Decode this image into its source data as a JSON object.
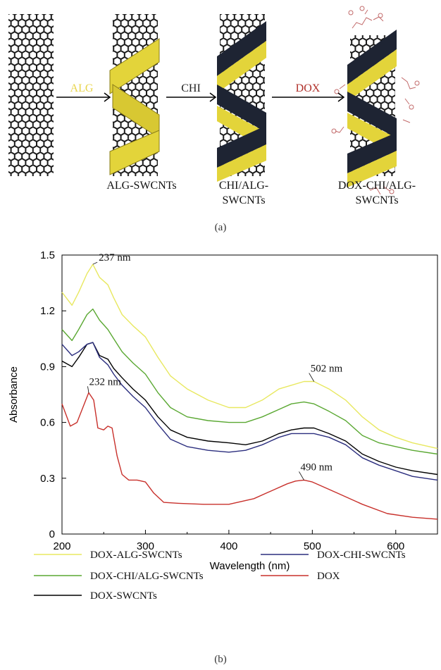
{
  "schematic": {
    "panel_label": "(a)",
    "steps": [
      {
        "reagent": "ALG",
        "reagent_color": "#e8d44a"
      },
      {
        "reagent": "CHI",
        "reagent_color": "#222222"
      },
      {
        "reagent": "DOX",
        "reagent_color": "#b0302a"
      }
    ],
    "products": [
      {
        "line1": "ALG-SWCNTs",
        "line2": ""
      },
      {
        "line1": "CHI/ALG-",
        "line2": "SWCNTs"
      },
      {
        "line1": "DOX-CHI/ALG-",
        "line2": "SWCNTs"
      }
    ],
    "colors": {
      "alg_band": "#e3d43a",
      "chi_band": "#1e2433",
      "tube": "#1a1a1a"
    }
  },
  "chart_data": {
    "type": "line",
    "panel_label": "(b)",
    "xlabel": "Wavelength (nm)",
    "ylabel": "Absorbance",
    "xlim": [
      200,
      650
    ],
    "ylim": [
      0,
      1.5
    ],
    "xticks": [
      200,
      300,
      400,
      500,
      600
    ],
    "xtick_labels": [
      "200",
      "300",
      "400",
      "500",
      "600"
    ],
    "yticks": [
      0,
      0.3,
      0.6,
      0.9,
      1.2,
      1.5
    ],
    "ytick_labels": [
      "0",
      "0.3",
      "0.6",
      "0.9",
      "1.2",
      "1.5"
    ],
    "grid": false,
    "legend_position": "bottom",
    "annotations": [
      {
        "text": "237 nm",
        "x": 237,
        "y": 1.45
      },
      {
        "text": "232 nm",
        "x": 232,
        "y": 0.76
      },
      {
        "text": "502 nm",
        "x": 502,
        "y": 0.82
      },
      {
        "text": "490 nm",
        "x": 490,
        "y": 0.29
      }
    ],
    "series": [
      {
        "name": "DOX-ALG-SWCNTs",
        "color": "#e8e860",
        "x": [
          200,
          212,
          220,
          230,
          237,
          245,
          255,
          262,
          272,
          285,
          300,
          315,
          330,
          350,
          375,
          400,
          420,
          440,
          460,
          475,
          490,
          502,
          520,
          540,
          560,
          580,
          600,
          620,
          650
        ],
        "y": [
          1.3,
          1.23,
          1.3,
          1.4,
          1.45,
          1.38,
          1.34,
          1.27,
          1.18,
          1.12,
          1.06,
          0.95,
          0.85,
          0.78,
          0.72,
          0.68,
          0.68,
          0.72,
          0.78,
          0.8,
          0.82,
          0.82,
          0.78,
          0.72,
          0.63,
          0.56,
          0.52,
          0.49,
          0.46
        ]
      },
      {
        "name": "DOX-CHI/ALG-SWCNTs",
        "color": "#5aa832",
        "x": [
          200,
          212,
          220,
          230,
          237,
          245,
          255,
          262,
          272,
          285,
          300,
          315,
          330,
          350,
          375,
          400,
          420,
          440,
          460,
          475,
          490,
          502,
          520,
          540,
          560,
          580,
          600,
          620,
          650
        ],
        "y": [
          1.1,
          1.04,
          1.1,
          1.18,
          1.21,
          1.15,
          1.1,
          1.05,
          0.98,
          0.92,
          0.86,
          0.76,
          0.68,
          0.63,
          0.61,
          0.6,
          0.6,
          0.63,
          0.67,
          0.7,
          0.71,
          0.7,
          0.66,
          0.61,
          0.53,
          0.49,
          0.47,
          0.45,
          0.43
        ]
      },
      {
        "name": "DOX-SWCNTs",
        "color": "#000000",
        "x": [
          200,
          212,
          220,
          230,
          237,
          245,
          255,
          262,
          272,
          285,
          300,
          315,
          330,
          350,
          375,
          400,
          420,
          440,
          460,
          475,
          490,
          502,
          520,
          540,
          560,
          580,
          600,
          620,
          650
        ],
        "y": [
          0.93,
          0.9,
          0.95,
          1.02,
          1.03,
          0.96,
          0.94,
          0.89,
          0.84,
          0.78,
          0.72,
          0.63,
          0.56,
          0.52,
          0.5,
          0.49,
          0.48,
          0.5,
          0.54,
          0.56,
          0.57,
          0.57,
          0.54,
          0.5,
          0.43,
          0.39,
          0.36,
          0.34,
          0.32
        ]
      },
      {
        "name": "DOX-CHI-SWCNTs",
        "color": "#2b2e7e",
        "x": [
          200,
          212,
          220,
          230,
          237,
          245,
          255,
          262,
          272,
          285,
          300,
          315,
          330,
          350,
          375,
          400,
          420,
          440,
          460,
          475,
          490,
          502,
          520,
          540,
          560,
          580,
          600,
          620,
          650
        ],
        "y": [
          1.02,
          0.96,
          0.98,
          1.02,
          1.03,
          0.95,
          0.91,
          0.86,
          0.8,
          0.74,
          0.68,
          0.59,
          0.51,
          0.47,
          0.45,
          0.44,
          0.45,
          0.48,
          0.52,
          0.54,
          0.54,
          0.54,
          0.52,
          0.48,
          0.41,
          0.37,
          0.34,
          0.31,
          0.29
        ]
      },
      {
        "name": "DOX",
        "color": "#c8302b",
        "x": [
          200,
          210,
          218,
          225,
          232,
          238,
          243,
          250,
          255,
          260,
          266,
          272,
          280,
          290,
          300,
          310,
          322,
          340,
          370,
          400,
          430,
          455,
          470,
          480,
          490,
          500,
          510,
          530,
          560,
          590,
          620,
          650
        ],
        "y": [
          0.7,
          0.58,
          0.6,
          0.68,
          0.76,
          0.72,
          0.57,
          0.56,
          0.58,
          0.57,
          0.42,
          0.32,
          0.29,
          0.29,
          0.28,
          0.22,
          0.17,
          0.165,
          0.16,
          0.16,
          0.19,
          0.24,
          0.27,
          0.285,
          0.29,
          0.28,
          0.26,
          0.22,
          0.16,
          0.11,
          0.09,
          0.08
        ]
      }
    ],
    "legend_order": [
      0,
      3,
      1,
      4,
      2
    ]
  }
}
